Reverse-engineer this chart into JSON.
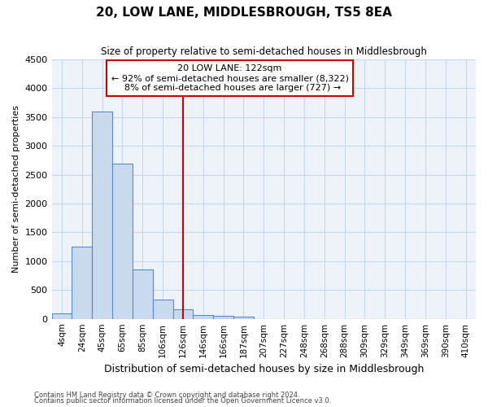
{
  "title": "20, LOW LANE, MIDDLESBROUGH, TS5 8EA",
  "subtitle": "Size of property relative to semi-detached houses in Middlesbrough",
  "xlabel": "Distribution of semi-detached houses by size in Middlesbrough",
  "ylabel": "Number of semi-detached properties",
  "categories": [
    "4sqm",
    "24sqm",
    "45sqm",
    "65sqm",
    "85sqm",
    "106sqm",
    "126sqm",
    "146sqm",
    "166sqm",
    "187sqm",
    "207sqm",
    "227sqm",
    "248sqm",
    "268sqm",
    "288sqm",
    "309sqm",
    "329sqm",
    "349sqm",
    "369sqm",
    "390sqm",
    "410sqm"
  ],
  "values": [
    100,
    1250,
    3600,
    2700,
    850,
    330,
    170,
    65,
    55,
    40,
    0,
    0,
    0,
    0,
    0,
    0,
    0,
    0,
    0,
    0,
    0
  ],
  "bar_color": "#c9d9ee",
  "bar_edge_color": "#5b8bc9",
  "property_line_index": 6,
  "property_sqm": 122,
  "pct_smaller": 92,
  "n_smaller": 8322,
  "pct_larger": 8,
  "n_larger": 727,
  "annotation_box_color": "#ffffff",
  "annotation_box_edge": "#cc0000",
  "vline_color": "#cc0000",
  "grid_color": "#c8d8ec",
  "fig_bg_color": "#ffffff",
  "plot_bg_color": "#eef3fa",
  "ylim": [
    0,
    4500
  ],
  "yticks": [
    0,
    500,
    1000,
    1500,
    2000,
    2500,
    3000,
    3500,
    4000,
    4500
  ],
  "footnote1": "Contains HM Land Registry data © Crown copyright and database right 2024.",
  "footnote2": "Contains public sector information licensed under the Open Government Licence v3.0."
}
